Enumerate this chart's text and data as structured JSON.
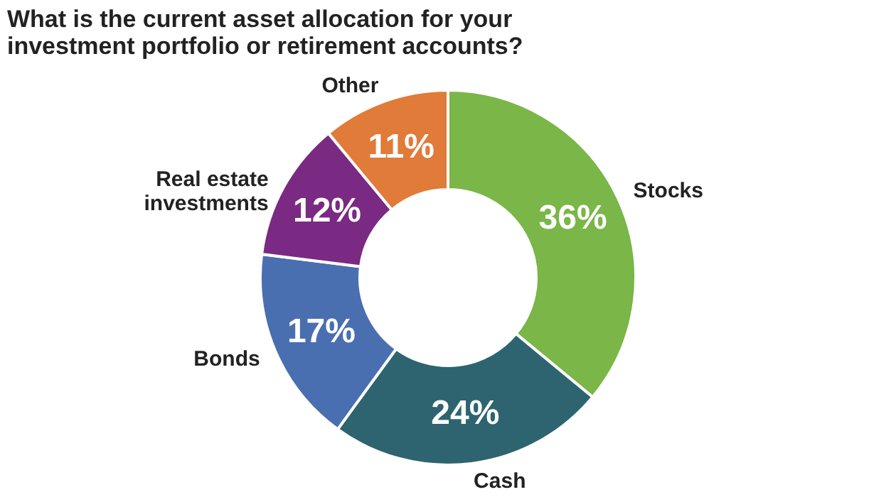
{
  "chart_data": {
    "type": "donut",
    "title": "What is the current asset allocation for your investment portfolio or retirement accounts?",
    "categories": [
      "Stocks",
      "Cash",
      "Bonds",
      "Real estate investments",
      "Other"
    ],
    "values": [
      36,
      24,
      17,
      12,
      11
    ],
    "colors": [
      "#7ab648",
      "#2e6470",
      "#4a6fb0",
      "#7a2a82",
      "#e07b39"
    ],
    "value_labels": [
      "36%",
      "24%",
      "17%",
      "12%",
      "11%"
    ],
    "legend": false
  }
}
